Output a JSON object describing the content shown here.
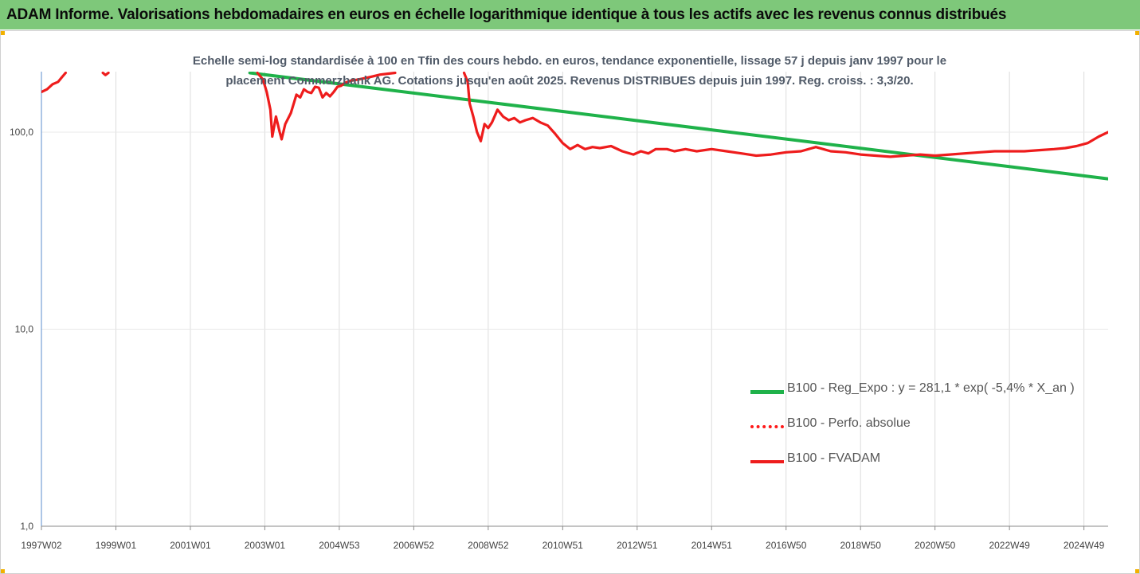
{
  "header": {
    "title": "ADAM Informe. Valorisations hebdomadaires en euros en échelle logarithmique identique à tous les actifs avec les revenus connus distribués"
  },
  "chart_data": {
    "type": "line",
    "title": "",
    "subtitle_lines": [
      "Echelle semi-log standardisée à 100 en Tfin des cours hebdo. en euros, tendance exponentielle, lissage 57 j depuis janv 1997 pour le",
      "placement Commerzbank AG. Cotations jusqu'en août 2025. Revenus DISTRIBUES depuis juin 1997. Reg. croiss. : 3,3/20."
    ],
    "xlabel": "",
    "ylabel": "",
    "y_scale": "log",
    "ylim": [
      1,
      200
    ],
    "xlim": [
      1997.0,
      2025.65
    ],
    "grid": "vertical",
    "legend_position": "right",
    "y_ticks": [
      {
        "value": 1,
        "label": "1,0"
      },
      {
        "value": 10,
        "label": "10,0"
      },
      {
        "value": 100,
        "label": "100,0"
      }
    ],
    "x_ticks": [
      {
        "value": 1997.0,
        "label": "1997W02"
      },
      {
        "value": 1999.0,
        "label": "1999W01"
      },
      {
        "value": 2001.0,
        "label": "2001W01"
      },
      {
        "value": 2003.0,
        "label": "2003W01"
      },
      {
        "value": 2005.0,
        "label": "2004W53"
      },
      {
        "value": 2007.0,
        "label": "2006W52"
      },
      {
        "value": 2009.0,
        "label": "2008W52"
      },
      {
        "value": 2011.0,
        "label": "2010W51"
      },
      {
        "value": 2013.0,
        "label": "2012W51"
      },
      {
        "value": 2015.0,
        "label": "2014W51"
      },
      {
        "value": 2017.0,
        "label": "2016W50"
      },
      {
        "value": 2019.0,
        "label": "2018W50"
      },
      {
        "value": 2021.0,
        "label": "2020W50"
      },
      {
        "value": 2023.0,
        "label": "2022W49"
      },
      {
        "value": 2025.0,
        "label": "2024W49"
      }
    ],
    "series": [
      {
        "name": "B100 - Reg_Expo : y = 281,1 * exp( -5,4% *  X_an )",
        "color": "#1fb24a",
        "style": "solid",
        "x": [
          2002.6,
          2025.65
        ],
        "y": [
          200,
          58
        ]
      },
      {
        "name": "B100 - Perfo. absolue",
        "color": "#ff1a1a",
        "style": "dotted",
        "x": [],
        "y": []
      },
      {
        "name": "B100 - FVADAM",
        "color": "#ee1c1c",
        "style": "solid",
        "segments": [
          {
            "x": [
              1997.0,
              1997.15,
              1997.3,
              1997.45,
              1997.55,
              1997.65
            ],
            "y": [
              160,
              165,
              175,
              180,
              190,
              200
            ]
          },
          {
            "x": [
              1998.65,
              1998.72,
              1998.8
            ],
            "y": [
              200,
              195,
              200
            ]
          },
          {
            "x": [
              2002.8,
              2002.95,
              2003.05,
              2003.15,
              2003.2,
              2003.3,
              2003.4,
              2003.45,
              2003.55,
              2003.7,
              2003.85,
              2003.95,
              2004.05,
              2004.15,
              2004.25,
              2004.35,
              2004.45,
              2004.55,
              2004.65,
              2004.75,
              2004.85,
              2004.95,
              2005.05,
              2005.15,
              2005.3,
              2005.5,
              2005.7,
              2005.9,
              2006.1,
              2006.3,
              2006.5
            ],
            "y": [
              200,
              185,
              160,
              130,
              95,
              120,
              100,
              92,
              110,
              125,
              155,
              150,
              165,
              160,
              158,
              170,
              168,
              150,
              158,
              152,
              160,
              170,
              172,
              178,
              182,
              185,
              188,
              192,
              196,
              198,
              200
            ]
          },
          {
            "x": [
              2008.35,
              2008.45,
              2008.5,
              2008.6,
              2008.7,
              2008.8,
              2008.9,
              2009.0,
              2009.1,
              2009.25,
              2009.4,
              2009.55,
              2009.7,
              2009.85,
              2010.0,
              2010.2,
              2010.4,
              2010.6,
              2010.8,
              2011.0,
              2011.2,
              2011.4,
              2011.6,
              2011.8,
              2012.0,
              2012.3,
              2012.6,
              2012.9,
              2013.1,
              2013.3,
              2013.5,
              2013.8,
              2014.0,
              2014.3,
              2014.6,
              2015.0,
              2015.4,
              2015.8,
              2016.2,
              2016.6,
              2017.0,
              2017.4,
              2017.8,
              2018.2,
              2018.6,
              2019.0,
              2019.4,
              2019.8,
              2020.2,
              2020.6,
              2021.0,
              2021.4,
              2021.8,
              2022.2,
              2022.6,
              2023.0,
              2023.4,
              2023.8,
              2024.2,
              2024.5,
              2024.8,
              2025.1,
              2025.4,
              2025.65
            ],
            "y": [
              200,
              180,
              140,
              120,
              100,
              90,
              110,
              105,
              112,
              130,
              120,
              115,
              118,
              112,
              115,
              118,
              112,
              108,
              98,
              88,
              82,
              86,
              82,
              84,
              83,
              85,
              80,
              77,
              80,
              78,
              82,
              82,
              80,
              82,
              80,
              82,
              80,
              78,
              76,
              77,
              79,
              80,
              84,
              80,
              79,
              77,
              76,
              75,
              76,
              77,
              76,
              77,
              78,
              79,
              80,
              80,
              80,
              81,
              82,
              83,
              85,
              88,
              95,
              100
            ]
          }
        ]
      }
    ]
  }
}
